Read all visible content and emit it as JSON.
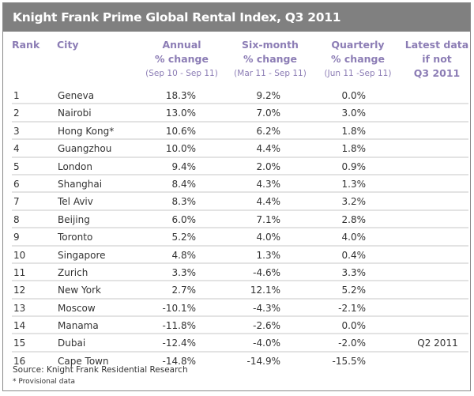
{
  "title": "Knight Frank Prime Global Rental Index, Q3 2011",
  "headers": {
    "rank": "Rank",
    "city": "City",
    "annual": {
      "line1": "Annual",
      "line2": "% change",
      "sub": "(Sep 10 - Sep 11)"
    },
    "six_month": {
      "line1": "Six-month",
      "line2": "% change",
      "sub": "(Mar 11 - Sep 11)"
    },
    "quarterly": {
      "line1": "Quarterly",
      "line2": "% change",
      "sub": "(Jun 11 -Sep 11)"
    },
    "latest": {
      "line1": "Latest data",
      "line2": "if not",
      "line3": "Q3 2011"
    }
  },
  "rows": [
    {
      "rank": "1",
      "city": "Geneva",
      "annual": "18.3%",
      "six_month": "9.2%",
      "quarterly": "0.0%",
      "latest": ""
    },
    {
      "rank": "2",
      "city": "Nairobi",
      "annual": "13.0%",
      "six_month": "7.0%",
      "quarterly": "3.0%",
      "latest": ""
    },
    {
      "rank": "3",
      "city": "Hong Kong*",
      "annual": "10.6%",
      "six_month": "6.2%",
      "quarterly": "1.8%",
      "latest": ""
    },
    {
      "rank": "4",
      "city": "Guangzhou",
      "annual": "10.0%",
      "six_month": "4.4%",
      "quarterly": "1.8%",
      "latest": ""
    },
    {
      "rank": "5",
      "city": "London",
      "annual": "9.4%",
      "six_month": "2.0%",
      "quarterly": "0.9%",
      "latest": ""
    },
    {
      "rank": "6",
      "city": "Shanghai",
      "annual": "8.4%",
      "six_month": "4.3%",
      "quarterly": "1.3%",
      "latest": ""
    },
    {
      "rank": "7",
      "city": "Tel Aviv",
      "annual": "8.3%",
      "six_month": "4.4%",
      "quarterly": "3.2%",
      "latest": ""
    },
    {
      "rank": "8",
      "city": "Beijing",
      "annual": "6.0%",
      "six_month": "7.1%",
      "quarterly": "2.8%",
      "latest": ""
    },
    {
      "rank": "9",
      "city": "Toronto",
      "annual": "5.2%",
      "six_month": "4.0%",
      "quarterly": "4.0%",
      "latest": ""
    },
    {
      "rank": "10",
      "city": "Singapore",
      "annual": "4.8%",
      "six_month": "1.3%",
      "quarterly": "0.4%",
      "latest": ""
    },
    {
      "rank": "11",
      "city": "Zurich",
      "annual": "3.3%",
      "six_month": "-4.6%",
      "quarterly": "3.3%",
      "latest": ""
    },
    {
      "rank": "12",
      "city": "New York",
      "annual": "2.7%",
      "six_month": "12.1%",
      "quarterly": "5.2%",
      "latest": ""
    },
    {
      "rank": "13",
      "city": "Moscow",
      "annual": "-10.1%",
      "six_month": "-4.3%",
      "quarterly": "-2.1%",
      "latest": ""
    },
    {
      "rank": "14",
      "city": "Manama",
      "annual": "-11.8%",
      "six_month": "-2.6%",
      "quarterly": "0.0%",
      "latest": ""
    },
    {
      "rank": "15",
      "city": "Dubai",
      "annual": "-12.4%",
      "six_month": "-4.0%",
      "quarterly": "-2.0%",
      "latest": "Q2 2011"
    },
    {
      "rank": "16",
      "city": "Cape Town",
      "annual": "-14.8%",
      "six_month": "-14.9%",
      "quarterly": "-15.5%",
      "latest": ""
    }
  ],
  "source": "Source: Knight Frank Residential Research",
  "footnote": "* Provisional data",
  "colors": {
    "title_bar": "#808080",
    "header_text": "#8c7db5",
    "row_divider": "#e3e3e3"
  }
}
